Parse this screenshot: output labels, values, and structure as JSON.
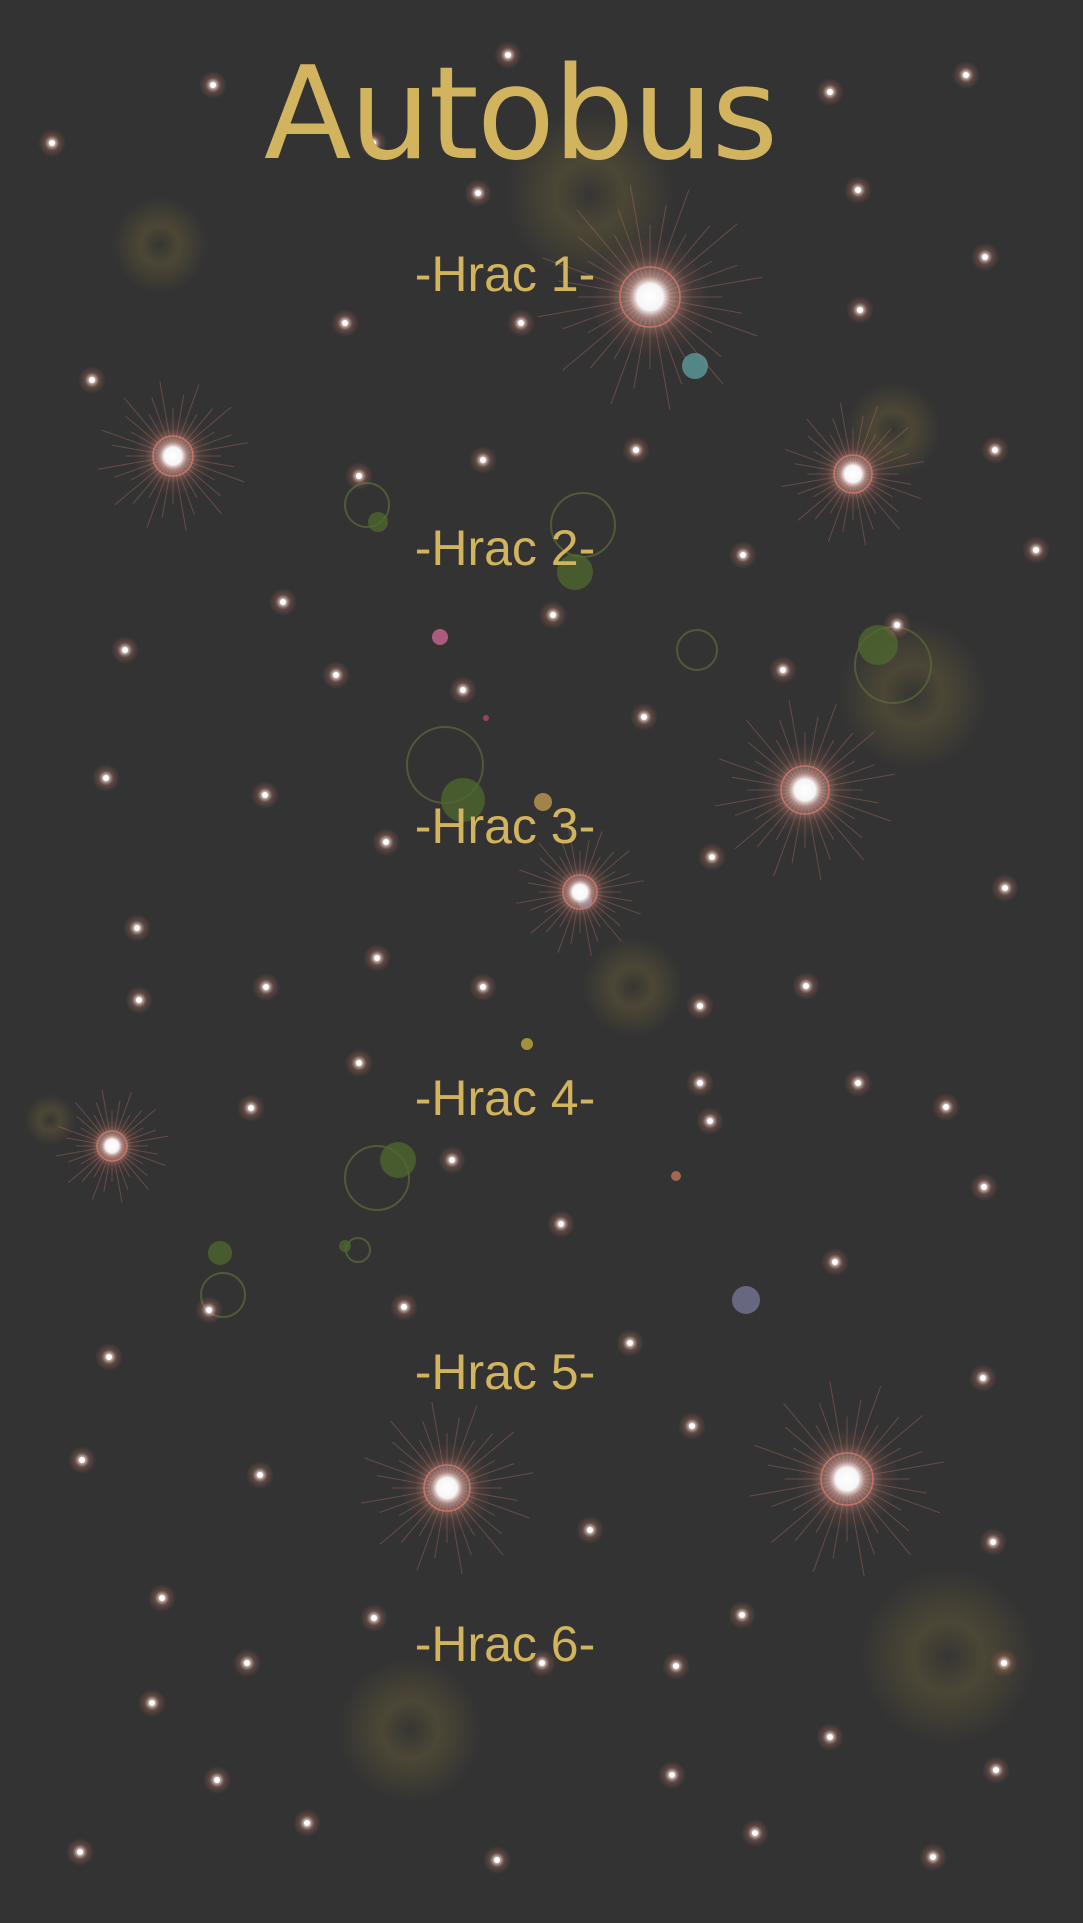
{
  "title": "Autobus",
  "players": [
    {
      "label": "-Hrac 1-"
    },
    {
      "label": "-Hrac 2-"
    },
    {
      "label": "-Hrac 3-"
    },
    {
      "label": "-Hrac 4-"
    },
    {
      "label": "-Hrac 5-"
    },
    {
      "label": "-Hrac 6-"
    }
  ],
  "colors": {
    "background": "#333333",
    "accent": "#d2b35e",
    "star_glow": "#c97a6a"
  },
  "background_icon": "starfield-background"
}
